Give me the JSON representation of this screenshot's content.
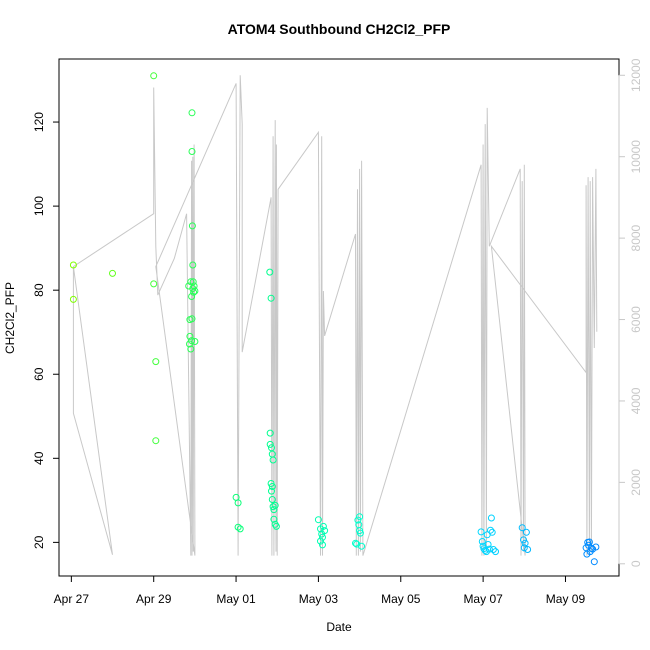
{
  "chart_data": {
    "type": "scatter",
    "title": "ATOM4 Southbound CH2Cl2_PFP",
    "xlabel": "Date",
    "ylabel": "CH2Cl2_PFP",
    "xlim": [
      -0.3,
      13.3
    ],
    "ylim": [
      12,
      135
    ],
    "yticks": [
      20,
      40,
      60,
      80,
      100,
      120
    ],
    "xticks": [
      {
        "x": 0,
        "label": "Apr 27"
      },
      {
        "x": 2,
        "label": "Apr 29"
      },
      {
        "x": 4,
        "label": "May 01"
      },
      {
        "x": 6,
        "label": "May 03"
      },
      {
        "x": 8,
        "label": "May 05"
      },
      {
        "x": 10,
        "label": "May 07"
      },
      {
        "x": 12,
        "label": "May 09"
      }
    ],
    "right_axis": {
      "ylim": [
        -300,
        12400
      ],
      "ticks": [
        0,
        2000,
        4000,
        6000,
        8000,
        10000,
        12000
      ],
      "color": "#c8c8c8"
    },
    "legend": "none",
    "series": [
      {
        "name": "CH2Cl2_PFP",
        "color_scale": [
          "#80ff00",
          "#00ff80",
          "#00ffff",
          "#0080ff"
        ],
        "points": [
          [
            0.05,
            86
          ],
          [
            0.05,
            77.8
          ],
          [
            1.0,
            84
          ],
          [
            2.0,
            131
          ],
          [
            2.0,
            81.5
          ],
          [
            2.05,
            63
          ],
          [
            2.05,
            44.2
          ],
          [
            2.85,
            81
          ],
          [
            2.87,
            67.2
          ],
          [
            2.88,
            73
          ],
          [
            2.88,
            69
          ],
          [
            2.9,
            82
          ],
          [
            2.9,
            66
          ],
          [
            2.92,
            68
          ],
          [
            2.92,
            78.5
          ],
          [
            2.93,
            73.2
          ],
          [
            2.93,
            122.2
          ],
          [
            2.93,
            113
          ],
          [
            2.94,
            95.3
          ],
          [
            2.95,
            86
          ],
          [
            2.95,
            80.4
          ],
          [
            2.96,
            82
          ],
          [
            2.97,
            79.5
          ],
          [
            2.98,
            81
          ],
          [
            3.0,
            79.8
          ],
          [
            3.0,
            67.8
          ],
          [
            4.0,
            30.7
          ],
          [
            4.05,
            29.4
          ],
          [
            4.05,
            23.6
          ],
          [
            4.1,
            23.2
          ],
          [
            4.82,
            84.3
          ],
          [
            4.85,
            78.1
          ],
          [
            4.83,
            46
          ],
          [
            4.83,
            43.3
          ],
          [
            4.86,
            42.5
          ],
          [
            4.88,
            41
          ],
          [
            4.9,
            39.6
          ],
          [
            4.85,
            34
          ],
          [
            4.88,
            33.3
          ],
          [
            4.86,
            32.2
          ],
          [
            4.88,
            30.2
          ],
          [
            4.9,
            28.5
          ],
          [
            4.92,
            27.8
          ],
          [
            4.95,
            28.8
          ],
          [
            4.92,
            25.5
          ],
          [
            4.95,
            24.3
          ],
          [
            4.98,
            23.8
          ],
          [
            6.0,
            25.4
          ],
          [
            6.05,
            23.2
          ],
          [
            6.08,
            22
          ],
          [
            6.1,
            21.2
          ],
          [
            6.05,
            20.3
          ],
          [
            6.1,
            19.4
          ],
          [
            6.12,
            23.8
          ],
          [
            6.15,
            22.8
          ],
          [
            6.9,
            19.8
          ],
          [
            6.93,
            19.6
          ],
          [
            6.96,
            25.3
          ],
          [
            7.0,
            26.1
          ],
          [
            6.98,
            24.2
          ],
          [
            7.0,
            22.8
          ],
          [
            7.02,
            22.2
          ],
          [
            7.05,
            19.1
          ],
          [
            9.95,
            22.5
          ],
          [
            9.98,
            20.2
          ],
          [
            10.0,
            19.1
          ],
          [
            10.02,
            18.5
          ],
          [
            10.05,
            18.1
          ],
          [
            10.08,
            17.8
          ],
          [
            10.1,
            21.8
          ],
          [
            10.12,
            19.5
          ],
          [
            10.15,
            18.4
          ],
          [
            10.18,
            22.9
          ],
          [
            10.2,
            25.8
          ],
          [
            10.22,
            22.4
          ],
          [
            10.25,
            18.3
          ],
          [
            10.3,
            17.8
          ],
          [
            10.95,
            23.5
          ],
          [
            10.98,
            20.6
          ],
          [
            11.0,
            18.7
          ],
          [
            11.02,
            19.8
          ],
          [
            11.05,
            22.4
          ],
          [
            11.08,
            18.3
          ],
          [
            12.5,
            18.7
          ],
          [
            12.52,
            17.2
          ],
          [
            12.54,
            20
          ],
          [
            12.56,
            19.3
          ],
          [
            12.58,
            20.1
          ],
          [
            12.6,
            17.8
          ],
          [
            12.63,
            18.6
          ],
          [
            12.66,
            18.4
          ],
          [
            12.7,
            15.4
          ],
          [
            12.74,
            18.9
          ]
        ]
      }
    ],
    "line_series": {
      "name": "secondary",
      "color": "#c8c8c8",
      "points": [
        [
          0.05,
          7300
        ],
        [
          0.05,
          3700
        ],
        [
          1.0,
          220
        ],
        [
          0.05,
          7300
        ],
        [
          2.0,
          8600
        ],
        [
          2.0,
          11700
        ],
        [
          2.05,
          7800
        ],
        [
          2.1,
          6600
        ],
        [
          2.5,
          7500
        ],
        [
          2.8,
          8600
        ],
        [
          2.9,
          200
        ],
        [
          2.92,
          9900
        ],
        [
          2.93,
          200
        ],
        [
          2.95,
          10000
        ],
        [
          2.96,
          300
        ],
        [
          2.98,
          10300
        ],
        [
          3.0,
          200
        ],
        [
          2.05,
          7300
        ],
        [
          4.0,
          11800
        ],
        [
          4.05,
          200
        ],
        [
          4.1,
          12000
        ],
        [
          4.15,
          10800
        ],
        [
          4.15,
          5200
        ],
        [
          4.85,
          9000
        ],
        [
          4.87,
          200
        ],
        [
          4.9,
          10500
        ],
        [
          4.92,
          200
        ],
        [
          4.95,
          10900
        ],
        [
          4.97,
          300
        ],
        [
          4.98,
          10300
        ],
        [
          5.0,
          200
        ],
        [
          5.02,
          9200
        ],
        [
          6.0,
          10600
        ],
        [
          6.05,
          200
        ],
        [
          6.08,
          10500
        ],
        [
          6.1,
          200
        ],
        [
          6.12,
          6700
        ],
        [
          6.15,
          5600
        ],
        [
          6.9,
          8100
        ],
        [
          6.92,
          200
        ],
        [
          6.95,
          9200
        ],
        [
          6.97,
          200
        ],
        [
          7.0,
          9700
        ],
        [
          7.02,
          300
        ],
        [
          7.05,
          9900
        ],
        [
          7.08,
          200
        ],
        [
          9.95,
          9800
        ],
        [
          9.97,
          200
        ],
        [
          10.0,
          10300
        ],
        [
          10.02,
          200
        ],
        [
          10.05,
          10800
        ],
        [
          10.08,
          300
        ],
        [
          10.1,
          11200
        ],
        [
          10.15,
          7800
        ],
        [
          10.9,
          9700
        ],
        [
          10.92,
          200
        ],
        [
          10.95,
          9400
        ],
        [
          10.98,
          300
        ],
        [
          11.0,
          9800
        ],
        [
          11.02,
          200
        ],
        [
          10.2,
          7800
        ],
        [
          12.5,
          4700
        ],
        [
          12.5,
          9300
        ],
        [
          12.52,
          200
        ],
        [
          12.55,
          9500
        ],
        [
          12.58,
          200
        ],
        [
          12.6,
          9400
        ],
        [
          12.63,
          300
        ],
        [
          12.66,
          9500
        ],
        [
          12.7,
          5300
        ],
        [
          12.74,
          9700
        ],
        [
          12.76,
          5700
        ]
      ]
    }
  }
}
